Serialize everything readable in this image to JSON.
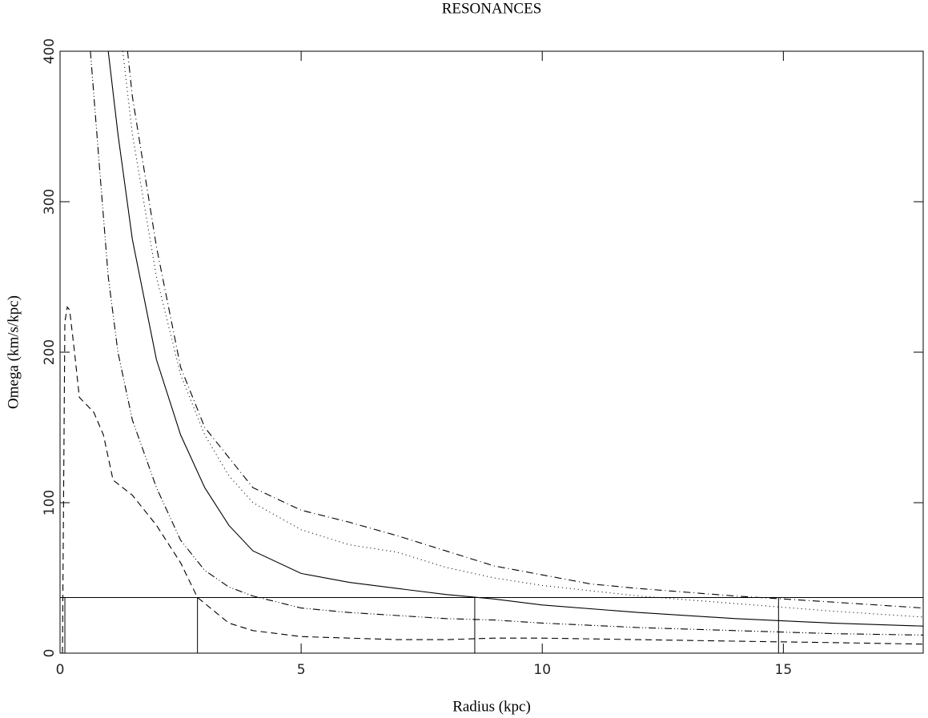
{
  "chart_data": {
    "type": "line",
    "title": "RESONANCES",
    "xlabel": "Radius (kpc)",
    "ylabel": "Omega (km/s/kpc)",
    "xlim": [
      0,
      17.9
    ],
    "ylim": [
      0,
      400
    ],
    "xticks": [
      0,
      5,
      10,
      15
    ],
    "yticks": [
      0,
      100,
      200,
      300,
      400
    ],
    "color": "#000000",
    "pattern_speed": 37,
    "resonance_radii": [
      0.1,
      2.85,
      8.6,
      14.9
    ],
    "series": [
      {
        "dash": "solid",
        "x": [
          1,
          1.2,
          1.5,
          2,
          2.5,
          3,
          3.5,
          4,
          5,
          6,
          7,
          8,
          9,
          10,
          12,
          14,
          16,
          17.9
        ],
        "values": [
          400,
          345,
          275,
          195,
          145,
          110,
          85,
          68,
          53,
          47,
          43,
          39,
          36,
          32,
          27,
          23,
          20,
          18
        ]
      },
      {
        "dash": "dotted",
        "x": [
          1.3,
          1.5,
          2,
          2.5,
          3,
          3.5,
          4,
          5,
          6,
          7,
          8,
          9,
          10,
          12,
          14,
          16,
          17.9
        ],
        "values": [
          400,
          345,
          250,
          185,
          145,
          118,
          100,
          82,
          72,
          67,
          57,
          50,
          45,
          38,
          33,
          28,
          24
        ]
      },
      {
        "dash": "dashdot",
        "x": [
          1.4,
          1.5,
          2,
          2.5,
          3,
          3.5,
          4,
          5,
          6,
          7,
          8,
          9,
          10,
          11,
          12,
          14,
          15,
          16,
          17.9
        ],
        "values": [
          400,
          370,
          270,
          190,
          150,
          130,
          110,
          95,
          87,
          78,
          68,
          58,
          52,
          46,
          43,
          38,
          36,
          34,
          30
        ]
      },
      {
        "dash": "dashdotdot",
        "x": [
          0.63,
          0.8,
          1,
          1.2,
          1.5,
          2,
          2.5,
          3,
          3.5,
          4,
          5,
          6,
          7,
          8,
          9,
          10,
          12,
          14,
          16,
          17.9
        ],
        "values": [
          400,
          330,
          250,
          200,
          155,
          110,
          75,
          55,
          44,
          38,
          30,
          27,
          25,
          23,
          22,
          20,
          17,
          15,
          13,
          12
        ]
      },
      {
        "dash": "dashed",
        "x": [
          0.05,
          0.1,
          0.15,
          0.2,
          0.3,
          0.4,
          0.7,
          0.9,
          1.1,
          1.5,
          2,
          2.5,
          2.85,
          3.5,
          4,
          5,
          6,
          7,
          8,
          9,
          10,
          12,
          14,
          16,
          17.9
        ],
        "values": [
          0,
          220,
          230,
          228,
          200,
          170,
          160,
          145,
          115,
          105,
          85,
          60,
          37,
          20,
          15,
          11,
          10,
          9,
          9,
          10,
          10,
          9,
          8,
          7,
          6
        ]
      }
    ]
  }
}
